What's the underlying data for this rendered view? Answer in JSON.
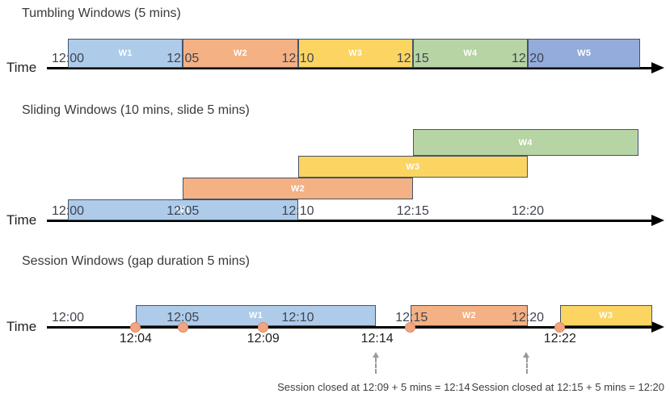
{
  "page": {
    "background": "#ffffff"
  },
  "colors": {
    "window_blue": "#AECBEA",
    "window_orange": "#F4B183",
    "window_yellow": "#FBD462",
    "window_green": "#B7D4A4",
    "window_blue_dark": "#93ACDB",
    "window_border": "#44546A",
    "timeline": "#000000",
    "tick_text": "#3E4450",
    "event_dot_fill": "#F2A583",
    "event_dot_border": "#DD8A5F",
    "dashed_arrow": "#9A9A9A",
    "window_label_text": "#FFFFFF"
  },
  "diagrams": [
    {
      "id": "tumbling",
      "type": "timeline-windows",
      "title": "Tumbling Windows (5 mins)",
      "axis_label": "Time",
      "ticks": [
        {
          "label": "12:00",
          "min": 0
        },
        {
          "label": "12:05",
          "min": 5
        },
        {
          "label": "12:10",
          "min": 10
        },
        {
          "label": "12:15",
          "min": 15
        },
        {
          "label": "12:20",
          "min": 20
        }
      ],
      "windows": [
        {
          "label": "W1",
          "color": "window_blue",
          "start_min": 0,
          "end_min": 5
        },
        {
          "label": "W2",
          "color": "window_orange",
          "start_min": 5,
          "end_min": 10
        },
        {
          "label": "W3",
          "color": "window_yellow",
          "start_min": 10,
          "end_min": 15
        },
        {
          "label": "W4",
          "color": "window_green",
          "start_min": 15,
          "end_min": 20
        },
        {
          "label": "W5",
          "color": "window_blue_dark",
          "start_min": 20,
          "end_min": 24.9
        }
      ]
    },
    {
      "id": "sliding",
      "type": "timeline-windows",
      "title": "Sliding Windows (10 mins, slide 5 mins)",
      "axis_label": "Time",
      "ticks": [
        {
          "label": "12:00",
          "min": 0
        },
        {
          "label": "12:05",
          "min": 5
        },
        {
          "label": "12:10",
          "min": 10
        },
        {
          "label": "12:15",
          "min": 15
        },
        {
          "label": "12:20",
          "min": 20
        }
      ],
      "windows": [
        {
          "label": "W1",
          "color": "window_blue",
          "start_min": 0,
          "end_min": 10,
          "row": 0
        },
        {
          "label": "W2",
          "color": "window_orange",
          "start_min": 5,
          "end_min": 15,
          "row": 1
        },
        {
          "label": "W3",
          "color": "window_yellow",
          "start_min": 10,
          "end_min": 20,
          "row": 2
        },
        {
          "label": "W4",
          "color": "window_green",
          "start_min": 15,
          "end_min": 24.8,
          "row": 3
        }
      ]
    },
    {
      "id": "session",
      "type": "timeline-windows",
      "title": "Session Windows (gap duration 5 mins)",
      "axis_label": "Time",
      "ticks": [
        {
          "label": "12:00",
          "min": 0
        },
        {
          "label": "12:05",
          "min": 5
        },
        {
          "label": "12:10",
          "min": 10
        },
        {
          "label": "12:15",
          "min": 14.95
        },
        {
          "label": "12:20",
          "min": 20
        }
      ],
      "windows": [
        {
          "label": "W1",
          "color": "window_blue",
          "start_min": 2.95,
          "end_min": 13.4
        },
        {
          "label": "W2",
          "color": "window_orange",
          "start_min": 14.9,
          "end_min": 20
        },
        {
          "label": "W3",
          "color": "window_yellow",
          "start_min": 21.4,
          "end_min": 25.4
        }
      ],
      "events": [
        {
          "min": 2.95,
          "label": "12:04"
        },
        {
          "min": 5.0,
          "label": ""
        },
        {
          "min": 8.5,
          "label": "12:09"
        },
        {
          "min": 14.9,
          "label": ""
        },
        {
          "min": 21.4,
          "label": "12:22"
        }
      ],
      "extra_time_labels": [
        {
          "min": 13.45,
          "label": "12:14"
        }
      ],
      "closure_notes": [
        {
          "arrow_min": 13.4,
          "text_center_min": 13.3,
          "text": "Session closed at 12:09 + 5 mins = 12:14"
        },
        {
          "arrow_min": 19.95,
          "text_center_min": 21.75,
          "text": "Session closed at 12:15 + 5 mins = 12:20"
        }
      ]
    }
  ]
}
